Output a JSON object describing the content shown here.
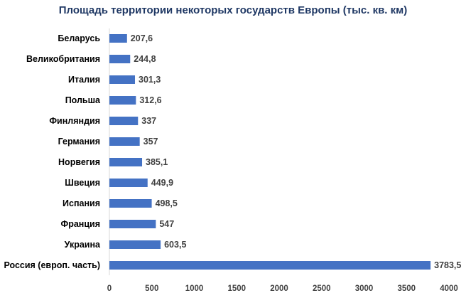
{
  "chart_data": {
    "type": "bar",
    "orientation": "horizontal",
    "title": "Площадь территории некоторых государств Европы (тыс. кв. км)",
    "categories": [
      "Беларусь",
      "Великобритания",
      "Италия",
      "Польша",
      "Финляндия",
      "Германия",
      "Норвегия",
      "Швеция",
      "Испания",
      "Франция",
      "Украина",
      "Россия (европ. часть)"
    ],
    "values": [
      207.6,
      244.8,
      301.3,
      312.6,
      337,
      357,
      385.1,
      449.9,
      498.5,
      547,
      603.5,
      3783.5
    ],
    "value_labels": [
      "207,6",
      "244,8",
      "301,3",
      "312,6",
      "337",
      "357",
      "385,1",
      "449,9",
      "498,5",
      "547",
      "603,5",
      "3783,5"
    ],
    "x_ticks": [
      "0",
      "500",
      "1000",
      "1500",
      "2000",
      "2500",
      "3000",
      "3500",
      "4000"
    ],
    "xlim": [
      0,
      4000
    ],
    "grid": false,
    "legend": "none",
    "bar_color": "#4472c4"
  }
}
